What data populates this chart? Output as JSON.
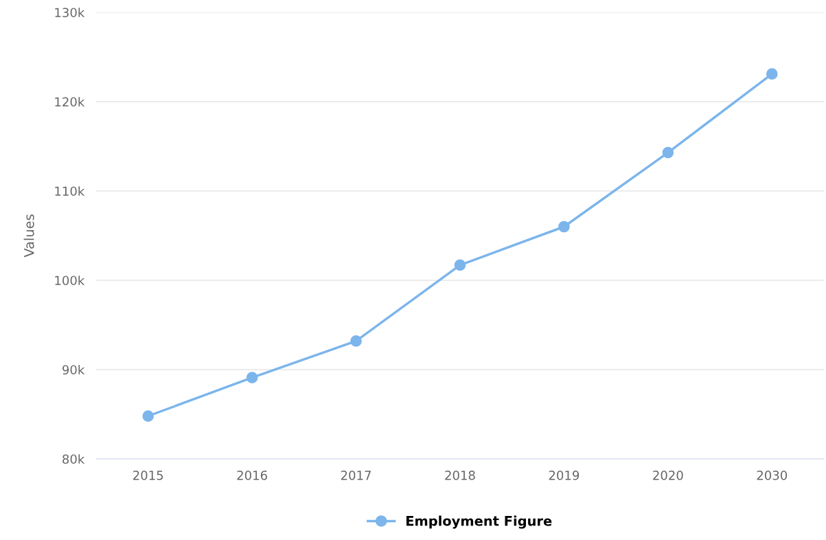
{
  "chart_data": {
    "type": "line",
    "ylabel": "Values",
    "categories": [
      "2015",
      "2016",
      "2017",
      "2018",
      "2019",
      "2020",
      "2030"
    ],
    "series": [
      {
        "name": "Employment Figure",
        "color": "#7cb5ec",
        "values": [
          84800,
          89100,
          93200,
          101700,
          106000,
          114300,
          123100
        ]
      }
    ],
    "ylim": [
      80000,
      130000
    ],
    "yticks": [
      {
        "value": 80000,
        "label": "80k"
      },
      {
        "value": 90000,
        "label": "90k"
      },
      {
        "value": 100000,
        "label": "100k"
      },
      {
        "value": 110000,
        "label": "110k"
      },
      {
        "value": 120000,
        "label": "120k"
      },
      {
        "value": 130000,
        "label": "130k"
      }
    ],
    "grid": "y",
    "legend": "bottom",
    "marker": "circle",
    "line_style": "solid"
  }
}
